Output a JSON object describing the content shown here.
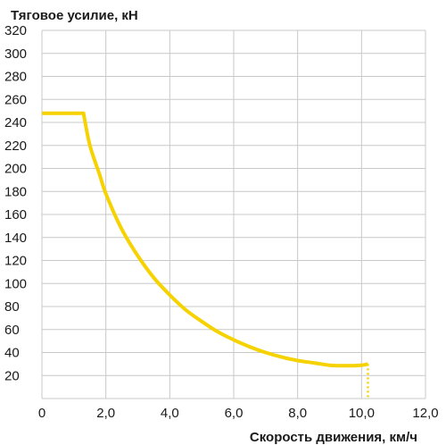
{
  "chart_data": {
    "type": "line",
    "title": "",
    "ylabel": "Тяговое усилие, кН",
    "xlabel": "Скорость движения, км/ч",
    "xlim": [
      0,
      12
    ],
    "ylim": [
      0,
      320
    ],
    "grid": true,
    "x_ticks": [
      0,
      2,
      4,
      6,
      8,
      10,
      12
    ],
    "x_tick_labels": [
      "0",
      "2,0",
      "4,0",
      "6,0",
      "8,0",
      "10,0",
      "12,0"
    ],
    "y_ticks": [
      20,
      40,
      60,
      80,
      100,
      120,
      140,
      160,
      180,
      200,
      220,
      240,
      260,
      280,
      300,
      320
    ],
    "y_tick_labels": [
      "20",
      "40",
      "60",
      "80",
      "100",
      "120",
      "140",
      "160",
      "180",
      "200",
      "220",
      "240",
      "260",
      "280",
      "300",
      "320"
    ],
    "series": [
      {
        "color": "#f5d200",
        "x": [
          0,
          1.3,
          1.5,
          1.8,
          2.0,
          2.5,
          3.0,
          3.5,
          4.0,
          4.5,
          5.0,
          5.5,
          6.0,
          6.5,
          7.0,
          7.5,
          8.0,
          8.5,
          9.0,
          9.5,
          10.0,
          10.2
        ],
        "y": [
          248,
          248,
          220,
          195,
          178,
          147,
          124,
          105,
          90,
          77,
          67,
          58,
          51,
          45,
          40,
          36,
          33,
          31,
          29,
          28.5,
          29,
          30
        ]
      }
    ],
    "dotted_drop": {
      "x": 10.2,
      "y_from": 30,
      "y_to": 0,
      "color": "#f5d200"
    }
  }
}
